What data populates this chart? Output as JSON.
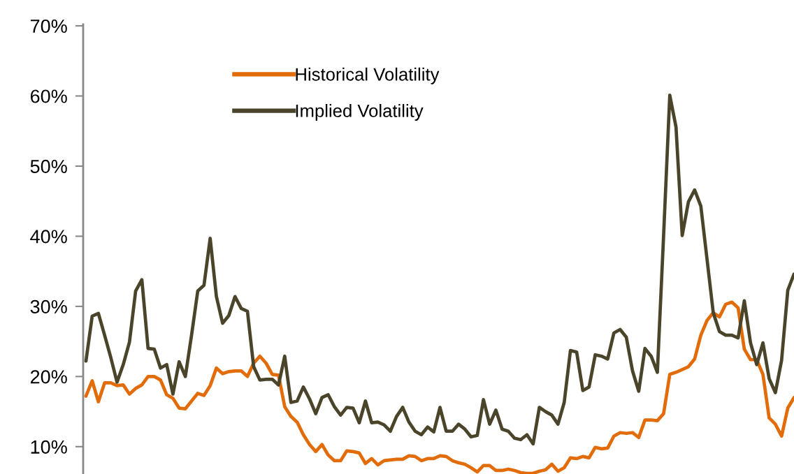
{
  "chart_data": {
    "type": "line",
    "categories": [
      null,
      null,
      null,
      null,
      null,
      null,
      null,
      null,
      null,
      null,
      null,
      null,
      null,
      null,
      null,
      null,
      null,
      null,
      null,
      null,
      null,
      null,
      null,
      null,
      null,
      null,
      null,
      null,
      null,
      null,
      null,
      null,
      null,
      null,
      null,
      null,
      null,
      null,
      null,
      null,
      null,
      null,
      null,
      null,
      null,
      null,
      null,
      null,
      null,
      null,
      null,
      null,
      null,
      null,
      null,
      null,
      null,
      null,
      null,
      null,
      null,
      null,
      null,
      null,
      null,
      null,
      null,
      null,
      null,
      null,
      null,
      null,
      null,
      null,
      null,
      null,
      null,
      null,
      null,
      null,
      null,
      null,
      null,
      null,
      null,
      null,
      null,
      null,
      null,
      null,
      null,
      null,
      null,
      null,
      null,
      null,
      null,
      null,
      null,
      null,
      null,
      null,
      null,
      null,
      null,
      null,
      null,
      null,
      null,
      null,
      null,
      null,
      null,
      null,
      null
    ],
    "series": [
      {
        "name": "Historical Volatility",
        "color": "#e36c0a",
        "values": [
          17.2,
          19.4,
          16.4,
          19.1,
          19.1,
          18.7,
          18.8,
          17.5,
          18.3,
          18.8,
          20.0,
          20.0,
          19.5,
          17.4,
          16.9,
          15.5,
          15.4,
          16.5,
          17.6,
          17.3,
          18.7,
          21.2,
          20.4,
          20.7,
          20.8,
          20.8,
          20.0,
          21.9,
          22.9,
          21.9,
          20.3,
          20.2,
          15.7,
          14.3,
          13.5,
          11.7,
          10.3,
          9.3,
          10.3,
          8.8,
          8.0,
          8.0,
          9.4,
          9.3,
          9.1,
          7.6,
          8.3,
          7.4,
          8.0,
          8.1,
          8.2,
          8.2,
          8.7,
          8.6,
          8.0,
          8.3,
          8.3,
          8.7,
          8.6,
          8.0,
          7.7,
          7.5,
          7.0,
          6.4,
          7.3,
          7.3,
          6.6,
          6.6,
          6.8,
          6.6,
          6.3,
          6.2,
          6.2,
          6.5,
          6.7,
          7.5,
          6.5,
          7.0,
          8.4,
          8.3,
          8.6,
          8.4,
          9.9,
          9.7,
          9.8,
          11.5,
          12.0,
          11.9,
          12.0,
          11.3,
          13.8,
          13.8,
          13.7,
          14.7,
          20.3,
          20.6,
          21.0,
          21.4,
          22.5,
          25.9,
          28.0,
          29.1,
          28.5,
          30.3,
          30.6,
          29.8,
          23.9,
          22.4,
          22.4,
          20.3,
          14.1,
          13.2,
          11.5,
          15.5,
          17.0
        ]
      },
      {
        "name": "Implied Volatility",
        "color": "#4a452a",
        "values": [
          22.2,
          28.6,
          29.0,
          25.9,
          22.7,
          19.2,
          21.7,
          24.9,
          32.2,
          33.8,
          24.0,
          23.9,
          21.2,
          21.7,
          17.5,
          22.1,
          20.0,
          25.9,
          32.2,
          33.0,
          39.7,
          31.4,
          27.6,
          28.7,
          31.4,
          29.7,
          29.3,
          21.4,
          19.5,
          19.6,
          19.6,
          18.8,
          22.9,
          16.3,
          16.5,
          18.5,
          16.8,
          14.7,
          17.0,
          17.4,
          15.7,
          14.5,
          15.6,
          15.5,
          13.4,
          16.5,
          13.4,
          13.5,
          13.1,
          12.2,
          14.3,
          15.6,
          13.5,
          12.2,
          11.7,
          12.8,
          12.1,
          15.6,
          12.2,
          12.2,
          13.2,
          12.5,
          11.4,
          11.6,
          16.7,
          13.2,
          15.2,
          12.5,
          12.2,
          11.2,
          11.0,
          11.7,
          10.4,
          15.6,
          15.0,
          14.5,
          13.2,
          16.3,
          23.7,
          23.5,
          18.0,
          18.5,
          23.1,
          22.9,
          22.5,
          26.2,
          26.7,
          25.6,
          20.8,
          17.9,
          24.0,
          22.9,
          20.6,
          40.0,
          60.1,
          55.6,
          40.1,
          44.9,
          46.6,
          44.3,
          36.7,
          29.1,
          26.4,
          25.9,
          25.9,
          25.5,
          30.8,
          24.8,
          21.7,
          24.8,
          19.7,
          17.7,
          22.3,
          32.3,
          34.6
        ]
      }
    ],
    "ylim": [
      6.1,
      70.2
    ],
    "yticks": [
      {
        "value": 10,
        "label": "10%"
      },
      {
        "value": 20,
        "label": "20%"
      },
      {
        "value": 30,
        "label": "30%"
      },
      {
        "value": 40,
        "label": "40%"
      },
      {
        "value": 50,
        "label": "50%"
      },
      {
        "value": 60,
        "label": "60%"
      },
      {
        "value": 70,
        "label": "70%"
      }
    ],
    "tick_labels": "y",
    "legend": "top",
    "grid": false,
    "marker": "none",
    "line_style": "solid"
  }
}
